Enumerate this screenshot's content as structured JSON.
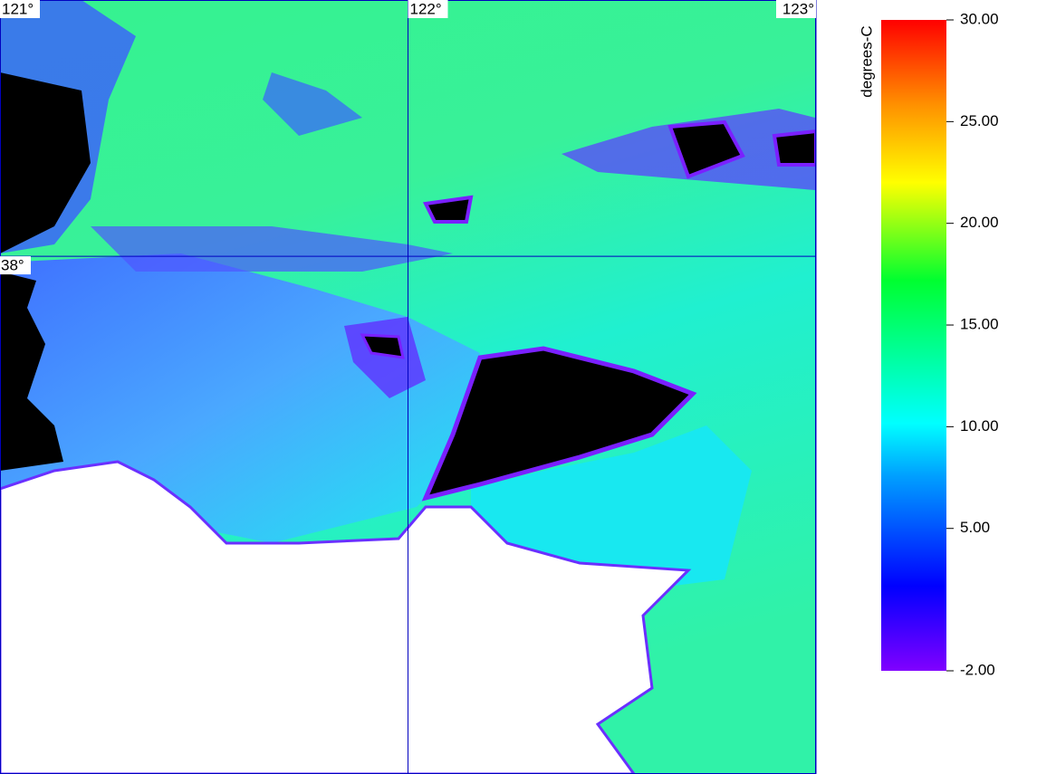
{
  "map": {
    "lon_ticks": [
      {
        "value": 121,
        "label": "121°"
      },
      {
        "value": 122,
        "label": "122°"
      },
      {
        "value": 123,
        "label": "123°"
      }
    ],
    "lat_ticks": [
      {
        "value": 38,
        "label": "38°"
      }
    ],
    "lonlim": [
      121,
      123
    ],
    "latlim": [
      36.99,
      38.5
    ],
    "colorbar": {
      "title": "degrees-C",
      "lim": [
        -2,
        30
      ],
      "ticks": [
        {
          "value": 30,
          "label": "30.00"
        },
        {
          "value": 25,
          "label": "25.00"
        },
        {
          "value": 20,
          "label": "20.00"
        },
        {
          "value": 15,
          "label": "15.00"
        },
        {
          "value": 10,
          "label": "10.00"
        },
        {
          "value": 5,
          "label": "5.00"
        },
        {
          "value": -2,
          "label": "-2.00"
        }
      ]
    }
  }
}
